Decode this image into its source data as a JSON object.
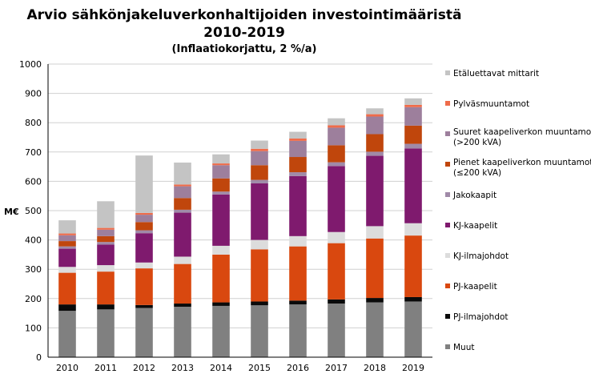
{
  "chart_data": {
    "type": "bar",
    "stacked": true,
    "title_line1": "Arvio sähkönjakeluverkonhaltijoiden investointimääristä",
    "title_line2": "2010-2019",
    "subtitle": "(Inflaatiokorjattu, 2 %/a)",
    "ylabel": "M€",
    "xlabel": "",
    "ylim": [
      0,
      1000
    ],
    "yticks": [
      0,
      100,
      200,
      300,
      400,
      500,
      600,
      700,
      800,
      900,
      1000
    ],
    "grid": true,
    "legend_position": "right",
    "categories": [
      "2010",
      "2011",
      "2012",
      "2013",
      "2014",
      "2015",
      "2016",
      "2017",
      "2018",
      "2019"
    ],
    "series": [
      {
        "name": "Muut",
        "color": "#808080",
        "values": [
          158,
          163,
          168,
          172,
          175,
          177,
          180,
          183,
          187,
          190
        ]
      },
      {
        "name": "PJ-ilmajohdot",
        "color": "#0a0a0a",
        "values": [
          22,
          17,
          10,
          11,
          12,
          13,
          13,
          14,
          15,
          15
        ]
      },
      {
        "name": "PJ-kaapelit",
        "color": "#d9480f",
        "values": [
          108,
          112,
          125,
          135,
          163,
          178,
          185,
          192,
          203,
          210
        ]
      },
      {
        "name": "KJ-ilmajohdot",
        "color": "#dcdcdc",
        "values": [
          20,
          22,
          20,
          25,
          30,
          32,
          35,
          38,
          42,
          42
        ]
      },
      {
        "name": "KJ-kaapelit",
        "color": "#7f1a6e",
        "values": [
          62,
          70,
          100,
          150,
          175,
          193,
          205,
          225,
          240,
          255
        ]
      },
      {
        "name": "Jakokaapit",
        "color": "#a08aa8",
        "values": [
          8,
          9,
          10,
          10,
          10,
          12,
          13,
          13,
          14,
          16
        ]
      },
      {
        "name": "Pienet kaapeliverkon muuntamot (≤200 kVA)",
        "color": "#c0460c",
        "values": [
          18,
          20,
          28,
          40,
          45,
          50,
          52,
          58,
          60,
          62
        ]
      },
      {
        "name": "Suuret kaapeliverkon muuntamot (>200 kVA)",
        "color": "#9d7f9c",
        "values": [
          20,
          22,
          25,
          40,
          45,
          48,
          55,
          60,
          60,
          63
        ]
      },
      {
        "name": "Pylväsmuuntamot",
        "color": "#ef6c4a",
        "values": [
          6,
          6,
          6,
          6,
          6,
          8,
          8,
          8,
          8,
          8
        ]
      },
      {
        "name": "Etäluettavat mittarit",
        "color": "#c4c4c4",
        "values": [
          45,
          91,
          196,
          75,
          31,
          28,
          23,
          24,
          20,
          22
        ]
      }
    ]
  }
}
